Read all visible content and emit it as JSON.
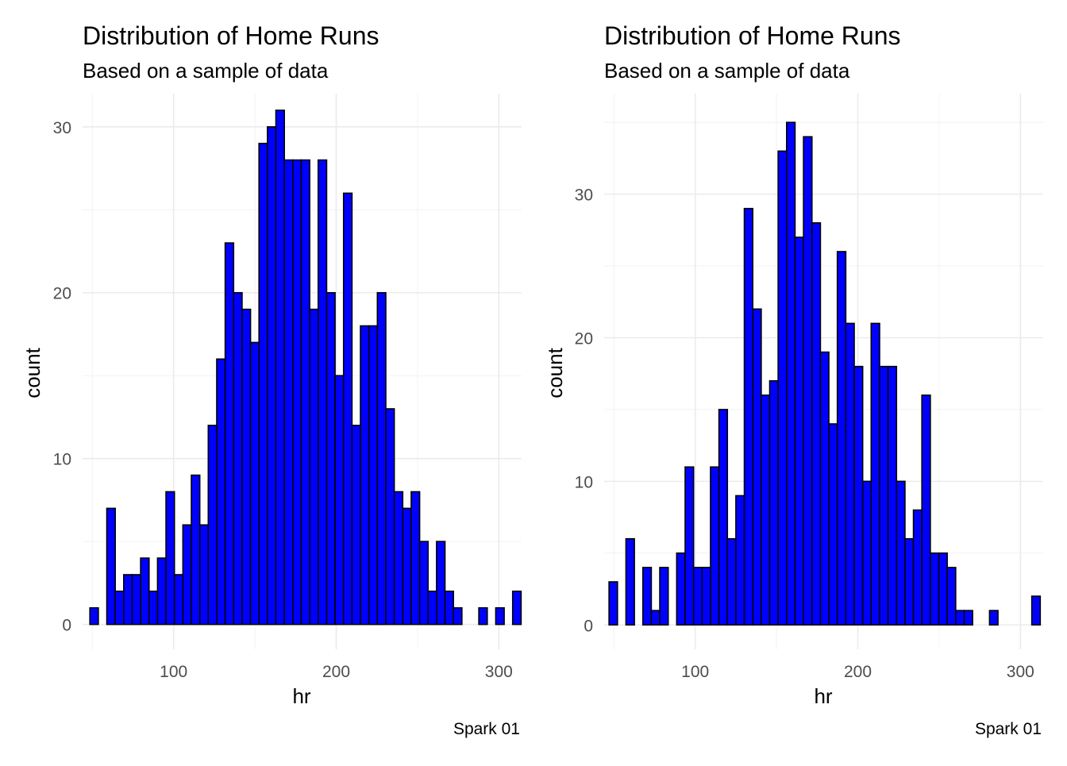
{
  "colors": {
    "bar_fill": "#0000ff",
    "bar_stroke": "#000000",
    "grid": "#ebebeb"
  },
  "chart_data": [
    {
      "type": "bar",
      "title": "Distribution of Home Runs",
      "subtitle": "Based on a sample of data",
      "xlabel": "hr",
      "ylabel": "count",
      "caption": "Spark 01",
      "xlim": [
        44,
        314
      ],
      "ylim": [
        -1.5,
        32
      ],
      "xticks": [
        100,
        200,
        300
      ],
      "yticks": [
        0,
        10,
        20,
        30
      ],
      "grid": true,
      "bin_start": 48.5,
      "bin_width": 5.2,
      "values": [
        1,
        0,
        7,
        2,
        3,
        3,
        4,
        2,
        4,
        8,
        3,
        6,
        9,
        6,
        12,
        16,
        23,
        20,
        19,
        17,
        29,
        30,
        31,
        28,
        28,
        28,
        19,
        28,
        20,
        15,
        26,
        12,
        18,
        18,
        20,
        13,
        8,
        7,
        8,
        5,
        2,
        5,
        2,
        1,
        0,
        0,
        1,
        0,
        1,
        0,
        2
      ]
    },
    {
      "type": "bar",
      "title": "Distribution of Home Runs",
      "subtitle": "Based on a sample of data",
      "xlabel": "hr",
      "ylabel": "count",
      "caption": "Spark 01",
      "xlim": [
        44,
        314
      ],
      "ylim": [
        -1.7,
        37
      ],
      "xticks": [
        100,
        200,
        300
      ],
      "yticks": [
        0,
        10,
        20,
        30
      ],
      "grid": true,
      "bin_start": 47,
      "bin_width": 5.2,
      "values": [
        3,
        0,
        6,
        0,
        4,
        1,
        4,
        0,
        5,
        11,
        4,
        4,
        11,
        15,
        6,
        9,
        29,
        22,
        16,
        17,
        33,
        35,
        27,
        34,
        28,
        19,
        14,
        26,
        21,
        18,
        10,
        21,
        18,
        18,
        10,
        6,
        8,
        16,
        5,
        5,
        4,
        1,
        1,
        0,
        0,
        1,
        0,
        0,
        0,
        0,
        2
      ]
    }
  ]
}
